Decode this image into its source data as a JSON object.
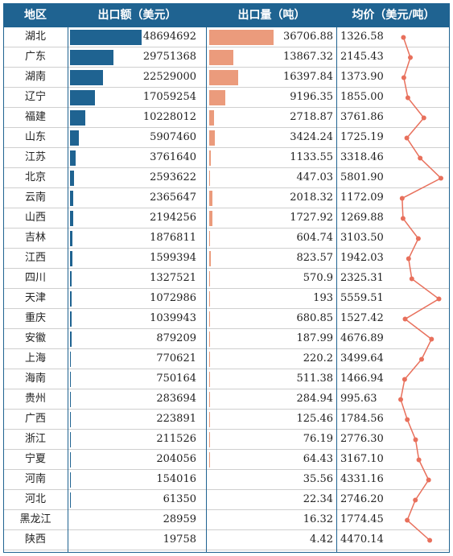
{
  "chart_data": {
    "type": "table",
    "headers": [
      "地区",
      "出口额（美元）",
      "出口量（吨）",
      "均价（美元/吨）"
    ],
    "rows": [
      {
        "region": "湖北",
        "export_value": 48694692,
        "export_qty": "36706.88",
        "price": "1326.58"
      },
      {
        "region": "广东",
        "export_value": 29751368,
        "export_qty": "13867.32",
        "price": "2145.43"
      },
      {
        "region": "湖南",
        "export_value": 22529000,
        "export_qty": "16397.84",
        "price": "1373.90"
      },
      {
        "region": "辽宁",
        "export_value": 17059254,
        "export_qty": "9196.35",
        "price": "1855.00"
      },
      {
        "region": "福建",
        "export_value": 10228012,
        "export_qty": "2718.87",
        "price": "3761.86"
      },
      {
        "region": "山东",
        "export_value": 5907460,
        "export_qty": "3424.24",
        "price": "1725.19"
      },
      {
        "region": "江苏",
        "export_value": 3761640,
        "export_qty": "1133.55",
        "price": "3318.46"
      },
      {
        "region": "北京",
        "export_value": 2593622,
        "export_qty": "447.03",
        "price": "5801.90"
      },
      {
        "region": "云南",
        "export_value": 2365647,
        "export_qty": "2018.32",
        "price": "1172.09"
      },
      {
        "region": "山西",
        "export_value": 2194256,
        "export_qty": "1727.92",
        "price": "1269.88"
      },
      {
        "region": "吉林",
        "export_value": 1876811,
        "export_qty": "604.74",
        "price": "3103.50"
      },
      {
        "region": "江西",
        "export_value": 1599394,
        "export_qty": "823.57",
        "price": "1942.03"
      },
      {
        "region": "四川",
        "export_value": 1327521,
        "export_qty": "570.9",
        "price": "2325.31"
      },
      {
        "region": "天津",
        "export_value": 1072986,
        "export_qty": "193",
        "price": "5559.51"
      },
      {
        "region": "重庆",
        "export_value": 1039943,
        "export_qty": "680.85",
        "price": "1527.42"
      },
      {
        "region": "安徽",
        "export_value": 879209,
        "export_qty": "187.99",
        "price": "4676.89"
      },
      {
        "region": "上海",
        "export_value": 770621,
        "export_qty": "220.2",
        "price": "3499.64"
      },
      {
        "region": "海南",
        "export_value": 750164,
        "export_qty": "511.38",
        "price": "1466.94"
      },
      {
        "region": "贵州",
        "export_value": 283694,
        "export_qty": "284.94",
        "price": "995.63"
      },
      {
        "region": "广西",
        "export_value": 223891,
        "export_qty": "125.46",
        "price": "1784.56"
      },
      {
        "region": "浙江",
        "export_value": 211526,
        "export_qty": "76.19",
        "price": "2776.30"
      },
      {
        "region": "宁夏",
        "export_value": 204056,
        "export_qty": "64.43",
        "price": "3167.10"
      },
      {
        "region": "河南",
        "export_value": 154016,
        "export_qty": "35.56",
        "price": "4331.16"
      },
      {
        "region": "河北",
        "export_value": 61350,
        "export_qty": "22.34",
        "price": "2746.20"
      },
      {
        "region": "黑龙江",
        "export_value": 28959,
        "export_qty": "16.32",
        "price": "1774.45"
      },
      {
        "region": "陕西",
        "export_value": 19758,
        "export_qty": "4.42",
        "price": "4470.14"
      }
    ],
    "bars": {
      "export_value_max": 48694692,
      "export_qty_max": 36706.88
    },
    "sparkline": {
      "price_range": [
        995.63,
        5801.9
      ]
    },
    "colors": {
      "header_bg": "#1f6391",
      "export_bar": "#1f6391",
      "qty_bar": "#eb9b7c",
      "sparkline": "#e8705c"
    }
  }
}
